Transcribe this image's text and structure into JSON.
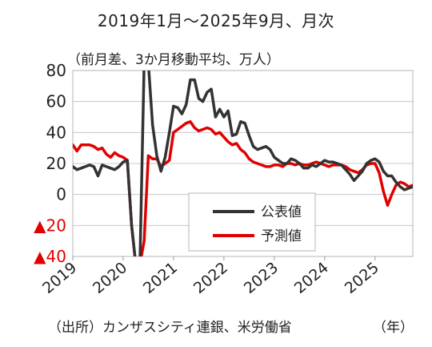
{
  "title": "2019年1月〜2025年9月、月次",
  "subtitle": "（前月差、3か月移動平均、万人）",
  "source": "（出所）カンザスシティ連銀、米労働省",
  "unit_label": "（年）",
  "chart_data": {
    "type": "line",
    "title": "2019年1月〜2025年9月、月次",
    "subtitle": "（前月差、3か月移動平均、万人）",
    "xlabel": "（年）",
    "ylabel": "",
    "ylim": [
      -40,
      80
    ],
    "xlim": [
      2019.0,
      2025.75
    ],
    "yticks": [
      {
        "value": 80,
        "label": "80",
        "color": "#222222"
      },
      {
        "value": 60,
        "label": "60",
        "color": "#222222"
      },
      {
        "value": 40,
        "label": "40",
        "color": "#222222"
      },
      {
        "value": 20,
        "label": "20",
        "color": "#222222"
      },
      {
        "value": 0,
        "label": "0",
        "color": "#222222"
      },
      {
        "value": -20,
        "label": "▲20",
        "color": "#e00000"
      },
      {
        "value": -40,
        "label": "▲40",
        "color": "#e00000"
      }
    ],
    "xticks": [
      {
        "value": 2019,
        "label": "2019"
      },
      {
        "value": 2020,
        "label": "2020"
      },
      {
        "value": 2021,
        "label": "2021"
      },
      {
        "value": 2022,
        "label": "2022"
      },
      {
        "value": 2023,
        "label": "2023"
      },
      {
        "value": 2024,
        "label": "2024"
      },
      {
        "value": 2025,
        "label": "2025"
      }
    ],
    "grid": true,
    "legend_position": "center-right",
    "series": [
      {
        "name": "公表値",
        "color": "#333333",
        "points": [
          [
            2019.0,
            18
          ],
          [
            2019.083,
            16
          ],
          [
            2019.167,
            17
          ],
          [
            2019.25,
            18
          ],
          [
            2019.333,
            19
          ],
          [
            2019.417,
            18
          ],
          [
            2019.5,
            12
          ],
          [
            2019.583,
            19
          ],
          [
            2019.667,
            18
          ],
          [
            2019.75,
            17
          ],
          [
            2019.833,
            16
          ],
          [
            2019.917,
            18
          ],
          [
            2020.0,
            21
          ],
          [
            2020.083,
            22
          ],
          [
            2020.167,
            -20
          ],
          [
            2020.25,
            -45
          ],
          [
            2020.333,
            -45
          ],
          [
            2020.417,
            85
          ],
          [
            2020.5,
            85
          ],
          [
            2020.583,
            45
          ],
          [
            2020.667,
            25
          ],
          [
            2020.75,
            15
          ],
          [
            2020.833,
            24
          ],
          [
            2020.917,
            40
          ],
          [
            2021.0,
            57
          ],
          [
            2021.083,
            56
          ],
          [
            2021.167,
            52
          ],
          [
            2021.25,
            58
          ],
          [
            2021.333,
            74
          ],
          [
            2021.417,
            74
          ],
          [
            2021.5,
            62
          ],
          [
            2021.583,
            60
          ],
          [
            2021.667,
            66
          ],
          [
            2021.75,
            68
          ],
          [
            2021.833,
            50
          ],
          [
            2021.917,
            55
          ],
          [
            2022.0,
            50
          ],
          [
            2022.083,
            54
          ],
          [
            2022.167,
            38
          ],
          [
            2022.25,
            39
          ],
          [
            2022.333,
            47
          ],
          [
            2022.417,
            46
          ],
          [
            2022.5,
            38
          ],
          [
            2022.583,
            31
          ],
          [
            2022.667,
            29
          ],
          [
            2022.75,
            30
          ],
          [
            2022.833,
            31
          ],
          [
            2022.917,
            29
          ],
          [
            2023.0,
            24
          ],
          [
            2023.083,
            22
          ],
          [
            2023.167,
            20
          ],
          [
            2023.25,
            20
          ],
          [
            2023.333,
            23
          ],
          [
            2023.417,
            22
          ],
          [
            2023.5,
            20
          ],
          [
            2023.583,
            17
          ],
          [
            2023.667,
            17
          ],
          [
            2023.75,
            19
          ],
          [
            2023.833,
            18
          ],
          [
            2023.917,
            20
          ],
          [
            2024.0,
            22
          ],
          [
            2024.083,
            21
          ],
          [
            2024.167,
            21
          ],
          [
            2024.25,
            20
          ],
          [
            2024.333,
            19
          ],
          [
            2024.417,
            16
          ],
          [
            2024.5,
            13
          ],
          [
            2024.583,
            9
          ],
          [
            2024.667,
            12
          ],
          [
            2024.75,
            15
          ],
          [
            2024.833,
            20
          ],
          [
            2024.917,
            22
          ],
          [
            2025.0,
            23
          ],
          [
            2025.083,
            21
          ],
          [
            2025.167,
            15
          ],
          [
            2025.25,
            12
          ],
          [
            2025.333,
            12
          ],
          [
            2025.417,
            8
          ],
          [
            2025.5,
            5
          ],
          [
            2025.583,
            3
          ],
          [
            2025.667,
            4
          ],
          [
            2025.75,
            5
          ]
        ]
      },
      {
        "name": "予測値",
        "color": "#e00000",
        "points": [
          [
            2019.0,
            32
          ],
          [
            2019.083,
            28
          ],
          [
            2019.167,
            32
          ],
          [
            2019.25,
            32
          ],
          [
            2019.333,
            32
          ],
          [
            2019.417,
            31
          ],
          [
            2019.5,
            29
          ],
          [
            2019.583,
            30
          ],
          [
            2019.667,
            26
          ],
          [
            2019.75,
            24
          ],
          [
            2019.833,
            27
          ],
          [
            2019.917,
            25
          ],
          [
            2020.0,
            24
          ],
          [
            2020.083,
            22
          ],
          [
            2020.167,
            -20
          ],
          [
            2020.25,
            -45
          ],
          [
            2020.333,
            -45
          ],
          [
            2020.417,
            -30
          ],
          [
            2020.5,
            25
          ],
          [
            2020.583,
            23
          ],
          [
            2020.667,
            23
          ],
          [
            2020.75,
            18
          ],
          [
            2020.833,
            20
          ],
          [
            2020.917,
            22
          ],
          [
            2021.0,
            40
          ],
          [
            2021.083,
            42
          ],
          [
            2021.167,
            44
          ],
          [
            2021.25,
            46
          ],
          [
            2021.333,
            47
          ],
          [
            2021.417,
            43
          ],
          [
            2021.5,
            41
          ],
          [
            2021.583,
            42
          ],
          [
            2021.667,
            43
          ],
          [
            2021.75,
            42
          ],
          [
            2021.833,
            39
          ],
          [
            2021.917,
            40
          ],
          [
            2022.0,
            37
          ],
          [
            2022.083,
            34
          ],
          [
            2022.167,
            32
          ],
          [
            2022.25,
            33
          ],
          [
            2022.333,
            29
          ],
          [
            2022.417,
            27
          ],
          [
            2022.5,
            23
          ],
          [
            2022.583,
            21
          ],
          [
            2022.667,
            20
          ],
          [
            2022.75,
            19
          ],
          [
            2022.833,
            18
          ],
          [
            2022.917,
            18
          ],
          [
            2023.0,
            19
          ],
          [
            2023.083,
            19
          ],
          [
            2023.167,
            18
          ],
          [
            2023.25,
            20
          ],
          [
            2023.333,
            20
          ],
          [
            2023.417,
            19
          ],
          [
            2023.5,
            20
          ],
          [
            2023.583,
            19
          ],
          [
            2023.667,
            19
          ],
          [
            2023.75,
            20
          ],
          [
            2023.833,
            21
          ],
          [
            2023.917,
            20
          ],
          [
            2024.0,
            19
          ],
          [
            2024.083,
            18
          ],
          [
            2024.167,
            19
          ],
          [
            2024.25,
            19
          ],
          [
            2024.333,
            19
          ],
          [
            2024.417,
            18
          ],
          [
            2024.5,
            16
          ],
          [
            2024.583,
            15
          ],
          [
            2024.667,
            14
          ],
          [
            2024.75,
            16
          ],
          [
            2024.833,
            19
          ],
          [
            2024.917,
            20
          ],
          [
            2025.0,
            20
          ],
          [
            2025.083,
            14
          ],
          [
            2025.167,
            2
          ],
          [
            2025.25,
            -7
          ],
          [
            2025.333,
            0
          ],
          [
            2025.417,
            6
          ],
          [
            2025.5,
            8
          ],
          [
            2025.583,
            7
          ],
          [
            2025.667,
            5
          ],
          [
            2025.75,
            6
          ]
        ]
      }
    ]
  }
}
